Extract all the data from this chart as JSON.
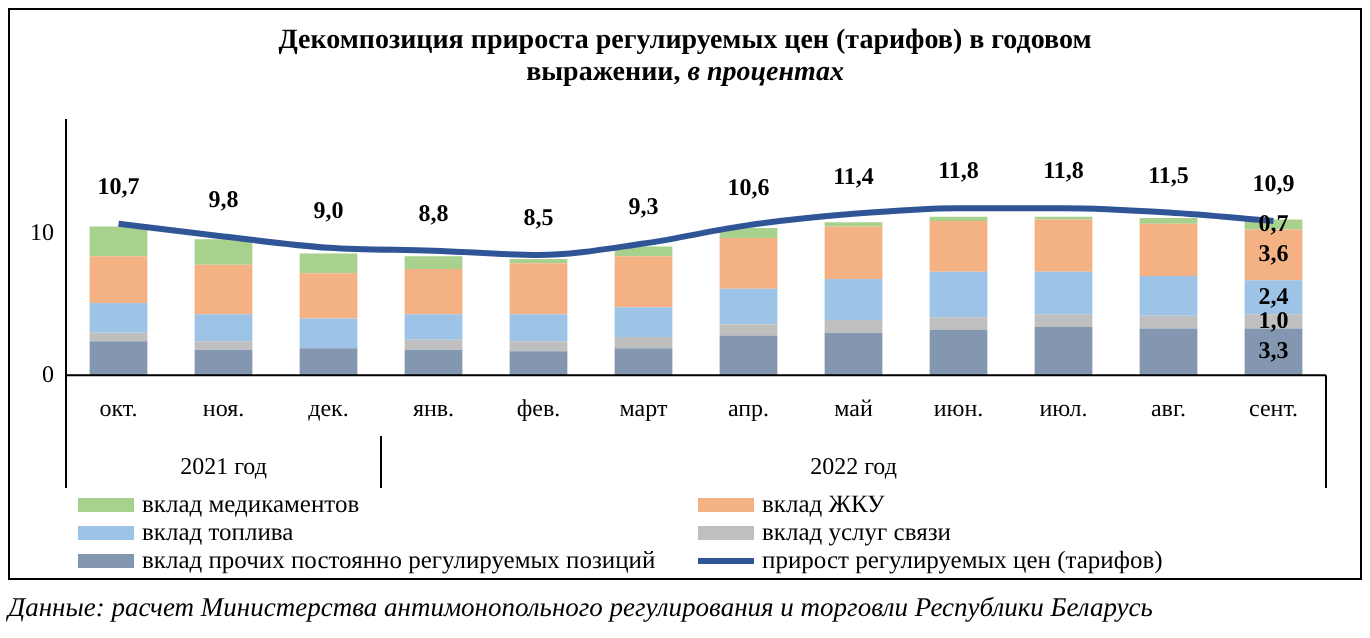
{
  "chart_data": {
    "type": "bar",
    "stacked": true,
    "title": "Декомпозиция прироста регулируемых цен (тарифов) в годовом выражении,",
    "subtitle": "в процентах",
    "categories": [
      "окт.",
      "ноя.",
      "дек.",
      "янв.",
      "фев.",
      "март",
      "апр.",
      "май",
      "июн.",
      "июл.",
      "авг.",
      "сент."
    ],
    "series": [
      {
        "name": "вклад прочих постоянно регулируемых позиций",
        "color": "#8497b0",
        "values": [
          2.4,
          1.8,
          1.9,
          1.8,
          1.7,
          1.9,
          2.8,
          3.0,
          3.2,
          3.4,
          3.3,
          3.3
        ],
        "value_labels": [
          null,
          null,
          null,
          null,
          null,
          null,
          null,
          null,
          null,
          null,
          null,
          "3,3"
        ]
      },
      {
        "name": "вклад услуг связи",
        "color": "#bfbfbf",
        "values": [
          0.6,
          0.6,
          null,
          0.7,
          0.7,
          0.8,
          0.8,
          0.9,
          0.9,
          0.9,
          0.9,
          1.0
        ],
        "value_labels": [
          null,
          null,
          null,
          null,
          null,
          null,
          null,
          null,
          null,
          null,
          null,
          "1,0"
        ]
      },
      {
        "name": "вклад топлива",
        "color": "#9dc3e6",
        "values": [
          2.1,
          1.9,
          2.1,
          1.8,
          1.9,
          2.1,
          2.5,
          2.9,
          3.2,
          3.0,
          2.8,
          2.4
        ],
        "value_labels": [
          null,
          null,
          null,
          null,
          null,
          null,
          null,
          null,
          null,
          null,
          null,
          "2,4"
        ]
      },
      {
        "name": "вклад ЖКУ",
        "color": "#f4b183",
        "values": [
          3.3,
          3.5,
          3.2,
          3.2,
          3.6,
          3.6,
          3.6,
          3.7,
          3.6,
          3.7,
          3.7,
          3.6
        ],
        "value_labels": [
          null,
          null,
          null,
          null,
          null,
          null,
          null,
          null,
          null,
          null,
          null,
          "3,6"
        ]
      },
      {
        "name": "вклад медикаментов",
        "color": "#a9d18e",
        "values": [
          2.1,
          1.8,
          1.4,
          0.9,
          0.3,
          0.7,
          0.7,
          0.3,
          0.3,
          0.2,
          0.4,
          0.7
        ],
        "value_labels": [
          null,
          null,
          null,
          null,
          null,
          null,
          null,
          null,
          null,
          null,
          null,
          "0,7"
        ]
      },
      {
        "name": "прирост регулируемых цен (тарифов)",
        "type": "line",
        "color": "#2f5597",
        "values": [
          10.7,
          9.8,
          9.0,
          8.8,
          8.5,
          9.3,
          10.6,
          11.4,
          11.8,
          11.8,
          11.5,
          10.9
        ],
        "value_labels": [
          "10,7",
          "9,8",
          "9,0",
          "8,8",
          "8,5",
          "9,3",
          "10,6",
          "11,4",
          "11,8",
          "11,8",
          "11,5",
          "10,9"
        ]
      }
    ],
    "ylim": [
      0,
      18
    ],
    "yticks": [
      0,
      10
    ],
    "grid": false,
    "legend": "bottom",
    "marker": "none",
    "annotations": [
      "2021 год",
      "2022 год",
      "Данные: расчет Министерства антимонопольного регулирования и торговли Республики Беларусь"
    ]
  }
}
